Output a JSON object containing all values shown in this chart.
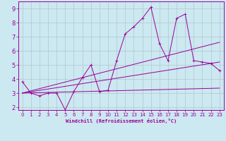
{
  "xlabel": "Windchill (Refroidissement éolien,°C)",
  "background_color": "#cce8f0",
  "grid_color": "#b0c8d0",
  "line_color": "#990099",
  "spine_color": "#990099",
  "xlim": [
    -0.5,
    23.5
  ],
  "ylim": [
    1.8,
    9.5
  ],
  "xticks": [
    0,
    1,
    2,
    3,
    4,
    5,
    6,
    7,
    8,
    9,
    10,
    11,
    12,
    13,
    14,
    15,
    16,
    17,
    18,
    19,
    20,
    21,
    22,
    23
  ],
  "yticks": [
    2,
    3,
    4,
    5,
    6,
    7,
    8,
    9
  ],
  "line1_x": [
    0,
    1,
    2,
    3,
    4,
    5,
    6,
    7,
    8,
    9,
    10,
    11,
    12,
    13,
    14,
    15,
    16,
    17,
    18,
    19,
    20,
    21,
    22,
    23
  ],
  "line1_y": [
    3.8,
    3.0,
    2.8,
    3.0,
    3.0,
    1.8,
    3.1,
    4.1,
    5.0,
    3.1,
    3.2,
    5.3,
    7.2,
    7.7,
    8.3,
    9.1,
    6.5,
    5.3,
    8.3,
    8.6,
    5.3,
    5.2,
    5.1,
    4.6
  ],
  "line2_x": [
    0,
    23
  ],
  "line2_y": [
    3.0,
    6.6
  ],
  "line3_x": [
    0,
    23
  ],
  "line3_y": [
    3.0,
    3.35
  ],
  "line4_x": [
    0,
    23
  ],
  "line4_y": [
    3.0,
    5.2
  ],
  "xlabel_fontsize": 5.0,
  "tick_fontsize": 5.0,
  "marker_size": 1.5,
  "line_width": 0.7
}
